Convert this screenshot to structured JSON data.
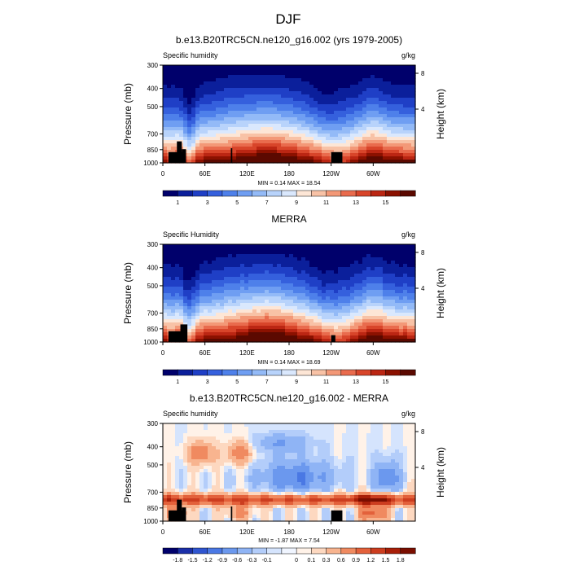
{
  "main_title": "DJF",
  "chart_data": [
    {
      "type": "heatmap",
      "title": "b.e13.B20TRC5CN.ne120_g16.002 (yrs 1979-2005)",
      "left_label": "Specific humidity",
      "right_label": "g/kg",
      "ylabel": "Pressure (mb)",
      "y2label": "Height (km)",
      "xticks": [
        "0",
        "60E",
        "120E",
        "180",
        "120W",
        "60W"
      ],
      "yticks": [
        "300",
        "400",
        "500",
        "700",
        "850",
        "1000"
      ],
      "y2ticks": [
        "8",
        "4"
      ],
      "stats": "MIN =    0.14   MAX =   18.54",
      "colorbar_labels": [
        "1",
        "3",
        "5",
        "7",
        "9",
        "11",
        "13",
        "15"
      ],
      "field": "model"
    },
    {
      "type": "heatmap",
      "title": "MERRA",
      "left_label": "Specific Humidity",
      "right_label": "g/kg",
      "ylabel": "Pressure (mb)",
      "y2label": "Height (km)",
      "xticks": [
        "0",
        "60E",
        "120E",
        "180",
        "120W",
        "60W"
      ],
      "yticks": [
        "300",
        "400",
        "500",
        "700",
        "850",
        "1000"
      ],
      "y2ticks": [
        "8",
        "4"
      ],
      "stats": "MIN =    0.14   MAX =   18.69",
      "colorbar_labels": [
        "1",
        "3",
        "5",
        "7",
        "9",
        "11",
        "13",
        "15"
      ],
      "field": "obs"
    },
    {
      "type": "heatmap",
      "title": "b.e13.B20TRC5CN.ne120_g16.002 - MERRA",
      "left_label": "Specific humidity",
      "right_label": "g/kg",
      "ylabel": "Pressure (mb)",
      "y2label": "Height (km)",
      "xticks": [
        "0",
        "60E",
        "120E",
        "180",
        "120W",
        "60W"
      ],
      "yticks": [
        "300",
        "400",
        "500",
        "700",
        "850",
        "1000"
      ],
      "y2ticks": [
        "8",
        "4"
      ],
      "stats": "MIN =   -1.87   MAX =    7.54",
      "colorbar_labels": [
        "-1.8",
        "-1.5",
        "-1.2",
        "-0.9",
        "-0.6",
        "-0.3",
        "-0.1",
        "0",
        "0.1",
        "0.3",
        "0.6",
        "0.9",
        "1.2",
        "1.5",
        "1.8"
      ],
      "field": "diff"
    }
  ],
  "colors": {
    "seq": [
      "#00006b",
      "#0b1f9b",
      "#1f3fc6",
      "#3560dd",
      "#4e80ea",
      "#6f9ef2",
      "#93baf7",
      "#b8d3fb",
      "#dae8fd",
      "#fde6d6",
      "#f8c2a6",
      "#f39877",
      "#e96b4d",
      "#d8452a",
      "#bb2613",
      "#8b1100",
      "#5b0900"
    ],
    "div": [
      "#00006b",
      "#1a2fa8",
      "#2f55d0",
      "#4a78e4",
      "#6b98ee",
      "#8fb4f5",
      "#b3cdfa",
      "#d5e4fd",
      "#f0f5ff",
      "#fff2e8",
      "#fdd8c0",
      "#f8b48f",
      "#f08a60",
      "#e3613b",
      "#cc3d1f",
      "#a81f08",
      "#7a0e00"
    ]
  }
}
